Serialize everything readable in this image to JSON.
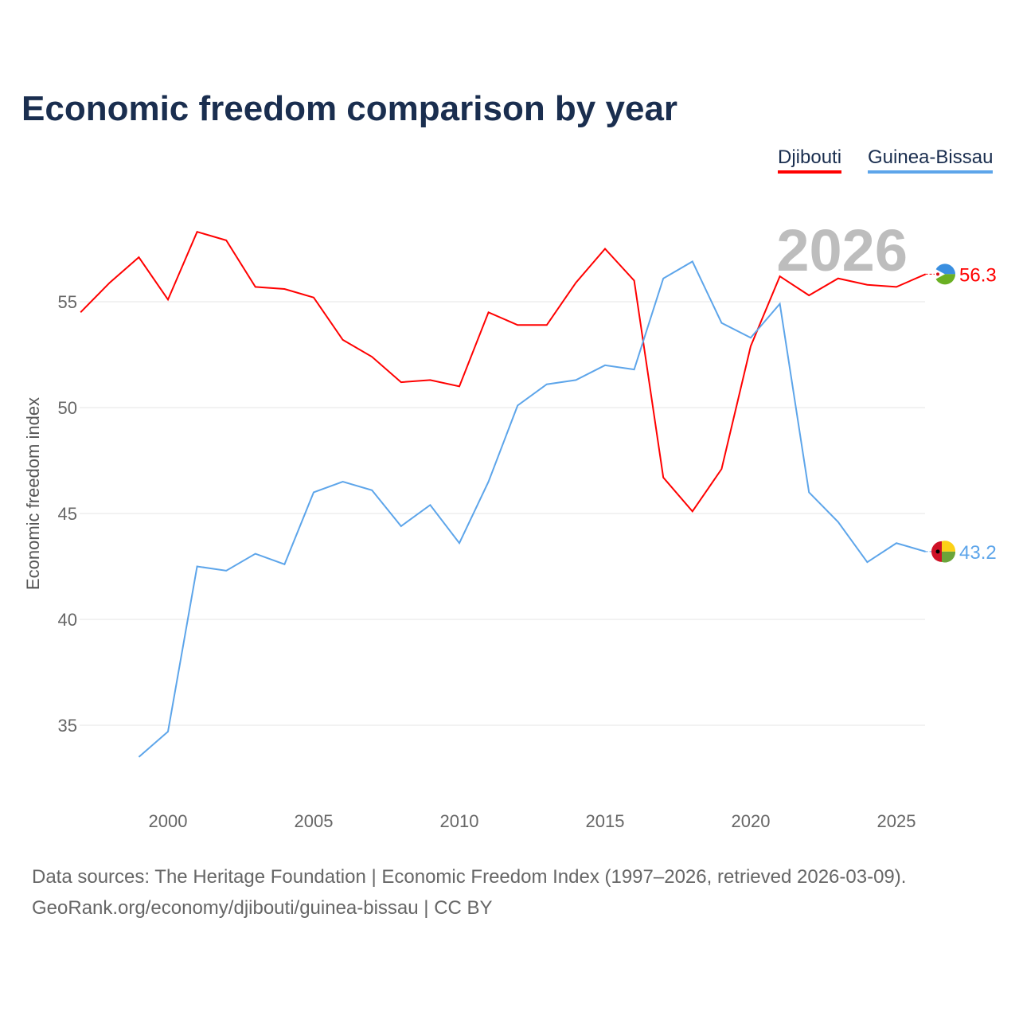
{
  "chart_data": {
    "type": "line",
    "title": "Economic freedom comparison by year",
    "xlabel": "",
    "ylabel": "Economic freedom index",
    "xlim": [
      1997,
      2026
    ],
    "ylim": [
      32,
      60
    ],
    "x_ticks": [
      2000,
      2005,
      2010,
      2015,
      2020,
      2025
    ],
    "y_ticks": [
      35,
      40,
      45,
      50,
      55
    ],
    "grid": true,
    "legend_position": "top-right",
    "year_label": "2026",
    "series": [
      {
        "name": "Djibouti",
        "color": "#ff0000",
        "end_label": "56.3",
        "x": [
          1997,
          1998,
          1999,
          2000,
          2001,
          2002,
          2003,
          2004,
          2005,
          2006,
          2007,
          2008,
          2009,
          2010,
          2011,
          2012,
          2013,
          2014,
          2015,
          2016,
          2017,
          2018,
          2019,
          2020,
          2021,
          2022,
          2023,
          2024,
          2025,
          2026
        ],
        "values": [
          54.5,
          55.9,
          57.1,
          55.1,
          58.3,
          57.9,
          55.7,
          55.6,
          55.2,
          53.2,
          52.4,
          51.2,
          51.3,
          51.0,
          54.5,
          53.9,
          53.9,
          55.9,
          57.5,
          56.0,
          46.7,
          45.1,
          47.1,
          52.9,
          56.2,
          55.3,
          56.1,
          55.8,
          55.7,
          56.3
        ]
      },
      {
        "name": "Guinea-Bissau",
        "color": "#5da5ea",
        "end_label": "43.2",
        "x": [
          1999,
          2000,
          2001,
          2002,
          2003,
          2004,
          2005,
          2006,
          2007,
          2008,
          2009,
          2010,
          2011,
          2012,
          2013,
          2014,
          2015,
          2016,
          2017,
          2018,
          2019,
          2020,
          2021,
          2022,
          2023,
          2024,
          2025,
          2026
        ],
        "values": [
          33.5,
          34.7,
          42.5,
          42.3,
          43.1,
          42.6,
          46.0,
          46.5,
          46.1,
          44.4,
          45.4,
          43.6,
          46.5,
          50.1,
          51.1,
          51.3,
          52.0,
          51.8,
          56.1,
          56.9,
          54.0,
          53.3,
          54.9,
          46.0,
          44.6,
          42.7,
          43.6,
          43.2
        ]
      }
    ]
  },
  "footer": {
    "line1": "Data sources: The Heritage Foundation | Economic Freedom Index (1997–2026, retrieved 2026-03-09).",
    "line2": "GeoRank.org/economy/djibouti/guinea-bissau | CC BY"
  }
}
